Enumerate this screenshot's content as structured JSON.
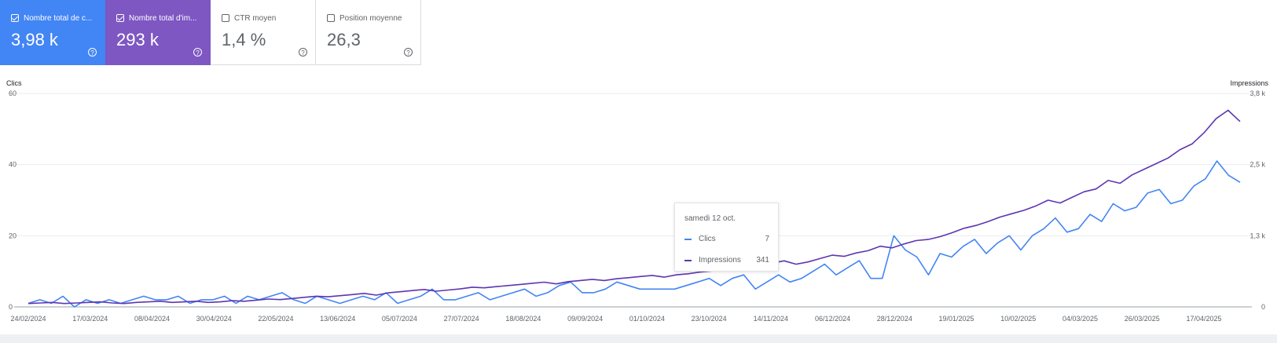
{
  "cards": [
    {
      "label": "Nombre total de c...",
      "value": "3,98 k",
      "checked": true,
      "style": "sel-clicks"
    },
    {
      "label": "Nombre total d'im...",
      "value": "293 k",
      "checked": true,
      "style": "sel-impr"
    },
    {
      "label": "CTR moyen",
      "value": "1,4 %",
      "checked": false,
      "style": ""
    },
    {
      "label": "Position moyenne",
      "value": "26,3",
      "checked": false,
      "style": ""
    }
  ],
  "help_glyph": "?",
  "tooltip": {
    "date": "samedi 12 oct.",
    "rows": [
      {
        "name": "Clics",
        "value": "7",
        "color": "#4285f4"
      },
      {
        "name": "Impressions",
        "value": "341",
        "color": "#5e35b1"
      }
    ]
  },
  "chart_data": {
    "type": "line",
    "left_axis_label": "Clics",
    "right_axis_label": "Impressions",
    "left_ticks": [
      "60",
      "40",
      "20",
      "0"
    ],
    "right_ticks": [
      "3,8 k",
      "2,5 k",
      "1,3 k",
      "0"
    ],
    "ylim_left": [
      0,
      60
    ],
    "ylim_right": [
      0,
      3800
    ],
    "x_tick_labels": [
      "24/02/2024",
      "17/03/2024",
      "08/04/2024",
      "30/04/2024",
      "22/05/2024",
      "13/06/2024",
      "05/07/2024",
      "27/07/2024",
      "18/08/2024",
      "09/09/2024",
      "01/10/2024",
      "23/10/2024",
      "14/11/2024",
      "06/12/2024",
      "28/12/2024",
      "19/01/2025",
      "10/02/2025",
      "04/03/2025",
      "26/03/2025",
      "17/04/2025"
    ],
    "series": [
      {
        "name": "Clics",
        "axis": "left",
        "color": "#4285f4",
        "values": [
          1,
          2,
          1,
          3,
          0,
          2,
          1,
          2,
          1,
          2,
          3,
          2,
          2,
          3,
          1,
          2,
          2,
          3,
          1,
          3,
          2,
          3,
          4,
          2,
          1,
          3,
          2,
          1,
          2,
          3,
          2,
          4,
          1,
          2,
          3,
          5,
          2,
          2,
          3,
          4,
          2,
          3,
          4,
          5,
          3,
          4,
          6,
          7,
          4,
          4,
          5,
          7,
          6,
          5,
          5,
          5,
          5,
          6,
          7,
          8,
          6,
          8,
          9,
          5,
          7,
          9,
          7,
          8,
          10,
          12,
          9,
          11,
          13,
          8,
          8,
          20,
          16,
          14,
          9,
          15,
          14,
          17,
          19,
          15,
          18,
          20,
          16,
          20,
          22,
          25,
          21,
          22,
          26,
          24,
          29,
          27,
          28,
          32,
          33,
          29,
          30,
          34,
          36,
          41,
          37,
          35
        ]
      },
      {
        "name": "Impressions",
        "axis": "right",
        "color": "#5e35b1",
        "values": [
          60,
          70,
          80,
          60,
          70,
          80,
          90,
          70,
          60,
          80,
          90,
          100,
          80,
          90,
          100,
          80,
          90,
          110,
          100,
          120,
          140,
          130,
          150,
          170,
          190,
          180,
          200,
          220,
          240,
          210,
          250,
          270,
          290,
          310,
          280,
          300,
          320,
          350,
          340,
          360,
          380,
          400,
          420,
          440,
          410,
          450,
          470,
          490,
          470,
          500,
          520,
          540,
          560,
          530,
          570,
          590,
          620,
          640,
          680,
          720,
          700,
          740,
          780,
          820,
          760,
          800,
          860,
          920,
          900,
          960,
          1000,
          1080,
          1050,
          1120,
          1180,
          1200,
          1250,
          1320,
          1400,
          1450,
          1520,
          1600,
          1660,
          1720,
          1800,
          1900,
          1850,
          1950,
          2050,
          2100,
          2250,
          2200,
          2350,
          2450,
          2550,
          2650,
          2800,
          2900,
          3100,
          3350,
          3500,
          3300
        ]
      }
    ]
  }
}
